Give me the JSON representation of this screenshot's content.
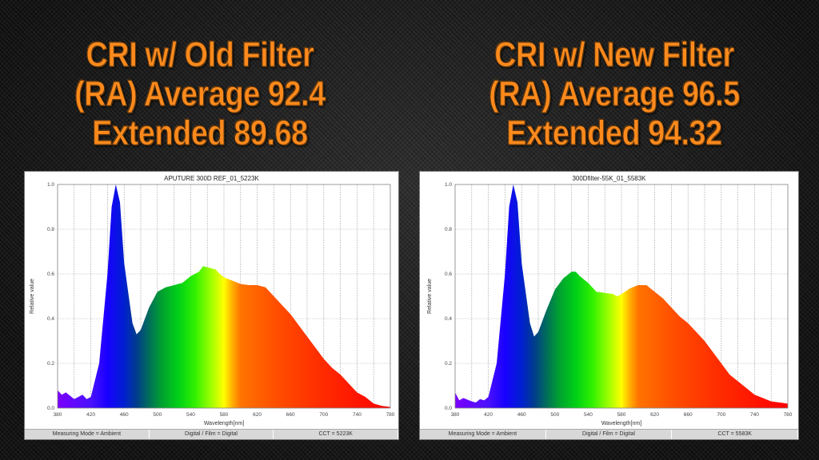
{
  "headlines": {
    "left": [
      "CRI w/ Old Filter",
      "(RA) Average 92.4",
      "Extended  89.68"
    ],
    "right": [
      "CRI w/ New Filter",
      "(RA) Average 96.5",
      "Extended  94.32"
    ]
  },
  "footers": {
    "left": [
      "Measuring Mode = Ambient",
      "Digital / Film = Digital",
      "CCT = 5223K"
    ],
    "right": [
      "Measuring Mode = Ambient",
      "Digital / Film = Digital",
      "CCT = 5583K"
    ]
  },
  "chart_data": [
    {
      "type": "area",
      "title": "APUTURE 300D REF_01_5223K",
      "xlabel": "Wavelength[nm]",
      "ylabel": "Relative value",
      "xlim": [
        380,
        780
      ],
      "ylim": [
        0,
        1.0
      ],
      "xticks": [
        "380",
        "420",
        "460",
        "500",
        "540",
        "580",
        "620",
        "660",
        "700",
        "740",
        "780"
      ],
      "yticks": [
        "0.0",
        "0.2",
        "0.4",
        "0.6",
        "0.8",
        "1.0"
      ],
      "grid": true,
      "x": [
        380,
        385,
        390,
        400,
        410,
        415,
        420,
        430,
        440,
        445,
        450,
        455,
        460,
        470,
        475,
        480,
        490,
        500,
        510,
        520,
        530,
        540,
        550,
        555,
        560,
        570,
        575,
        580,
        590,
        600,
        610,
        620,
        630,
        640,
        650,
        660,
        670,
        680,
        690,
        700,
        710,
        720,
        730,
        740,
        750,
        760,
        770,
        780
      ],
      "y": [
        0.08,
        0.06,
        0.07,
        0.04,
        0.06,
        0.04,
        0.05,
        0.2,
        0.6,
        0.9,
        1.0,
        0.92,
        0.65,
        0.38,
        0.33,
        0.35,
        0.45,
        0.52,
        0.54,
        0.55,
        0.56,
        0.59,
        0.61,
        0.635,
        0.63,
        0.62,
        0.6,
        0.585,
        0.57,
        0.555,
        0.55,
        0.55,
        0.54,
        0.5,
        0.46,
        0.42,
        0.37,
        0.32,
        0.27,
        0.22,
        0.18,
        0.15,
        0.11,
        0.07,
        0.05,
        0.02,
        0.01,
        0.005
      ]
    },
    {
      "type": "area",
      "title": "300Dfilter-55K_01_5583K",
      "xlabel": "Wavelength[nm]",
      "ylabel": "Relative value",
      "xlim": [
        380,
        780
      ],
      "ylim": [
        0,
        1.0
      ],
      "xticks": [
        "380",
        "420",
        "460",
        "500",
        "540",
        "580",
        "620",
        "660",
        "700",
        "740",
        "780"
      ],
      "yticks": [
        "0.0",
        "0.2",
        "0.4",
        "0.6",
        "0.8",
        "1.0"
      ],
      "grid": true,
      "x": [
        380,
        385,
        390,
        400,
        405,
        410,
        415,
        420,
        430,
        440,
        445,
        450,
        455,
        460,
        470,
        475,
        480,
        490,
        500,
        510,
        520,
        525,
        530,
        540,
        550,
        560,
        570,
        575,
        580,
        590,
        600,
        610,
        620,
        630,
        640,
        650,
        660,
        670,
        680,
        690,
        700,
        710,
        720,
        730,
        740,
        750,
        760,
        770,
        780
      ],
      "y": [
        0.07,
        0.035,
        0.045,
        0.03,
        0.025,
        0.04,
        0.035,
        0.05,
        0.2,
        0.6,
        0.9,
        1.0,
        0.92,
        0.65,
        0.38,
        0.32,
        0.34,
        0.44,
        0.53,
        0.58,
        0.61,
        0.61,
        0.59,
        0.56,
        0.52,
        0.515,
        0.51,
        0.5,
        0.51,
        0.535,
        0.55,
        0.55,
        0.52,
        0.49,
        0.45,
        0.41,
        0.38,
        0.34,
        0.3,
        0.25,
        0.2,
        0.15,
        0.12,
        0.09,
        0.06,
        0.045,
        0.03,
        0.025,
        0.02
      ]
    }
  ]
}
